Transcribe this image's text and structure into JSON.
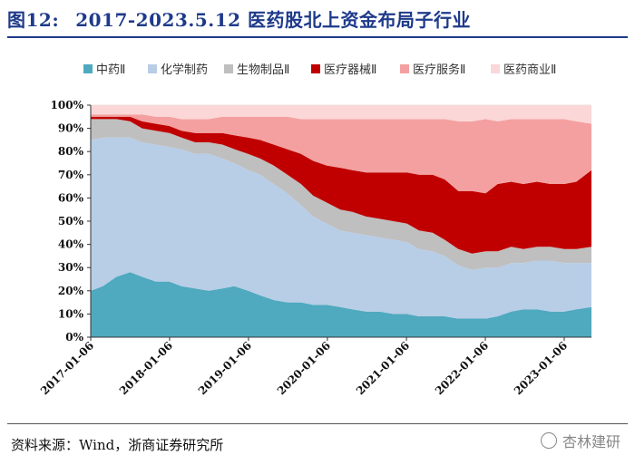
{
  "title": {
    "number": "图12:",
    "text": "2017-2023.5.12 医药股北上资金布局子行业"
  },
  "source": "资料来源：Wind，浙商证券研究所",
  "watermark": "杏林建研",
  "chart_data": {
    "type": "area",
    "stacked": true,
    "title": "2017-2023.5.12 医药股北上资金布局子行业",
    "xlabel": "",
    "ylabel": "",
    "ylim": [
      0,
      100
    ],
    "yticks": [
      "0%",
      "10%",
      "20%",
      "30%",
      "40%",
      "50%",
      "60%",
      "70%",
      "80%",
      "90%",
      "100%"
    ],
    "xticks": [
      "2017-01-06",
      "2018-01-06",
      "2019-01-06",
      "2020-01-06",
      "2021-01-06",
      "2022-01-06",
      "2023-01-06"
    ],
    "legend_position": "top",
    "x": [
      "2017-01-06",
      "2017-03-03",
      "2017-05-05",
      "2017-07-07",
      "2017-09-01",
      "2017-11-03",
      "2018-01-05",
      "2018-03-02",
      "2018-05-04",
      "2018-07-06",
      "2018-09-07",
      "2018-11-02",
      "2019-01-04",
      "2019-03-01",
      "2019-05-03",
      "2019-07-05",
      "2019-09-06",
      "2019-11-01",
      "2020-01-03",
      "2020-03-06",
      "2020-05-01",
      "2020-07-03",
      "2020-09-04",
      "2020-11-06",
      "2021-01-08",
      "2021-03-05",
      "2021-05-07",
      "2021-07-02",
      "2021-09-03",
      "2021-11-05",
      "2022-01-07",
      "2022-03-04",
      "2022-05-06",
      "2022-07-01",
      "2022-09-02",
      "2022-11-04",
      "2023-01-06",
      "2023-03-03",
      "2023-05-12"
    ],
    "series": [
      {
        "name": "中药Ⅱ",
        "color": "#4fa9bf",
        "values": [
          20,
          22,
          26,
          28,
          26,
          24,
          24,
          22,
          21,
          20,
          21,
          22,
          20,
          18,
          16,
          15,
          15,
          14,
          14,
          13,
          12,
          11,
          11,
          10,
          10,
          9,
          9,
          9,
          8,
          8,
          8,
          9,
          11,
          12,
          12,
          11,
          11,
          12,
          13
        ]
      },
      {
        "name": "化学制药",
        "color": "#b8cde6",
        "values": [
          65,
          64,
          60,
          58,
          58,
          59,
          58,
          59,
          58,
          59,
          56,
          53,
          52,
          52,
          50,
          47,
          42,
          38,
          35,
          33,
          33,
          33,
          32,
          32,
          31,
          29,
          28,
          26,
          23,
          21,
          22,
          21,
          21,
          20,
          21,
          22,
          21,
          20,
          19
        ]
      },
      {
        "name": "生物制品Ⅱ",
        "color": "#bfbfbf",
        "values": [
          9,
          8,
          8,
          7,
          6,
          6,
          6,
          5,
          5,
          5,
          6,
          6,
          7,
          7,
          8,
          8,
          9,
          9,
          9,
          9,
          9,
          8,
          8,
          8,
          8,
          8,
          8,
          7,
          7,
          7,
          7,
          7,
          7,
          6,
          6,
          6,
          6,
          6,
          7
        ]
      },
      {
        "name": "医疗器械Ⅱ",
        "color": "#c00000",
        "values": [
          1,
          1,
          1,
          2,
          3,
          3,
          3,
          3,
          4,
          4,
          5,
          6,
          7,
          8,
          9,
          11,
          13,
          15,
          16,
          18,
          18,
          19,
          20,
          21,
          22,
          24,
          25,
          26,
          25,
          27,
          25,
          29,
          28,
          28,
          28,
          27,
          28,
          29,
          33
        ]
      },
      {
        "name": "医疗服务Ⅱ",
        "color": "#f4a0a0",
        "values": [
          1,
          1,
          1,
          1,
          3,
          3,
          4,
          5,
          6,
          6,
          7,
          8,
          9,
          10,
          12,
          14,
          15,
          18,
          20,
          21,
          22,
          23,
          23,
          23,
          23,
          24,
          24,
          26,
          30,
          30,
          32,
          27,
          27,
          28,
          27,
          28,
          28,
          26,
          20
        ]
      },
      {
        "name": "医药商业Ⅱ",
        "color": "#fbd7d7",
        "values": [
          4,
          4,
          4,
          4,
          4,
          5,
          5,
          6,
          6,
          6,
          5,
          5,
          5,
          5,
          5,
          5,
          6,
          6,
          6,
          6,
          6,
          6,
          6,
          6,
          6,
          6,
          6,
          6,
          7,
          7,
          6,
          7,
          6,
          6,
          6,
          6,
          6,
          7,
          8
        ]
      }
    ]
  }
}
